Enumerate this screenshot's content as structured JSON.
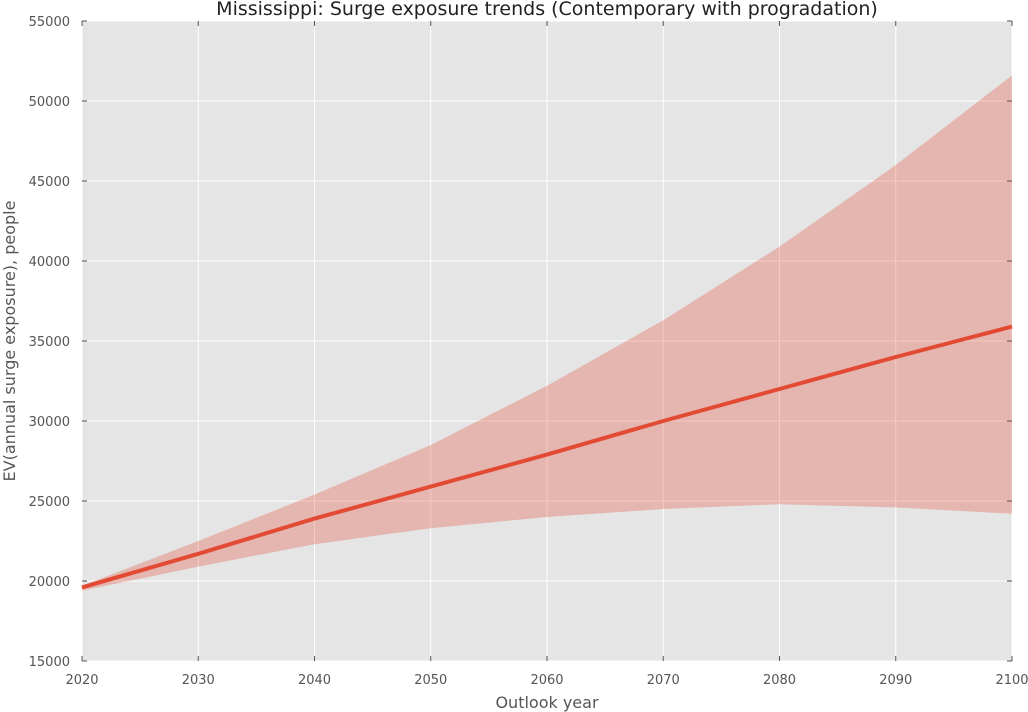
{
  "chart_data": {
    "type": "area",
    "title": "Mississippi: Surge exposure trends (Contemporary with progradation)",
    "xlabel": "Outlook year",
    "ylabel": "EV(annual surge exposure), people",
    "xlim": [
      2020,
      2100
    ],
    "ylim": [
      15000,
      55000
    ],
    "x_ticks": [
      "2020",
      "2030",
      "2040",
      "2050",
      "2060",
      "2070",
      "2080",
      "2090",
      "2100"
    ],
    "y_ticks": [
      "15000",
      "20000",
      "25000",
      "30000",
      "35000",
      "40000",
      "45000",
      "50000",
      "55000"
    ],
    "grid": true,
    "legend": "none",
    "x": [
      2020,
      2030,
      2040,
      2050,
      2060,
      2070,
      2080,
      2090,
      2100
    ],
    "series": [
      {
        "kind": "line",
        "values": [
          19600,
          21700,
          23900,
          25900,
          27900,
          30000,
          32000,
          34000,
          35900
        ]
      },
      {
        "kind": "band",
        "upper": [
          19700,
          22500,
          25400,
          28500,
          32200,
          36300,
          40900,
          46000,
          51600
        ],
        "lower": [
          19400,
          20900,
          22300,
          23300,
          24000,
          24500,
          24800,
          24600,
          24200
        ]
      }
    ],
    "colors": {
      "line": "#e24a33",
      "band": "#e24a33",
      "plot_background": "#e5e5e5",
      "grid": "#ffffff"
    }
  }
}
